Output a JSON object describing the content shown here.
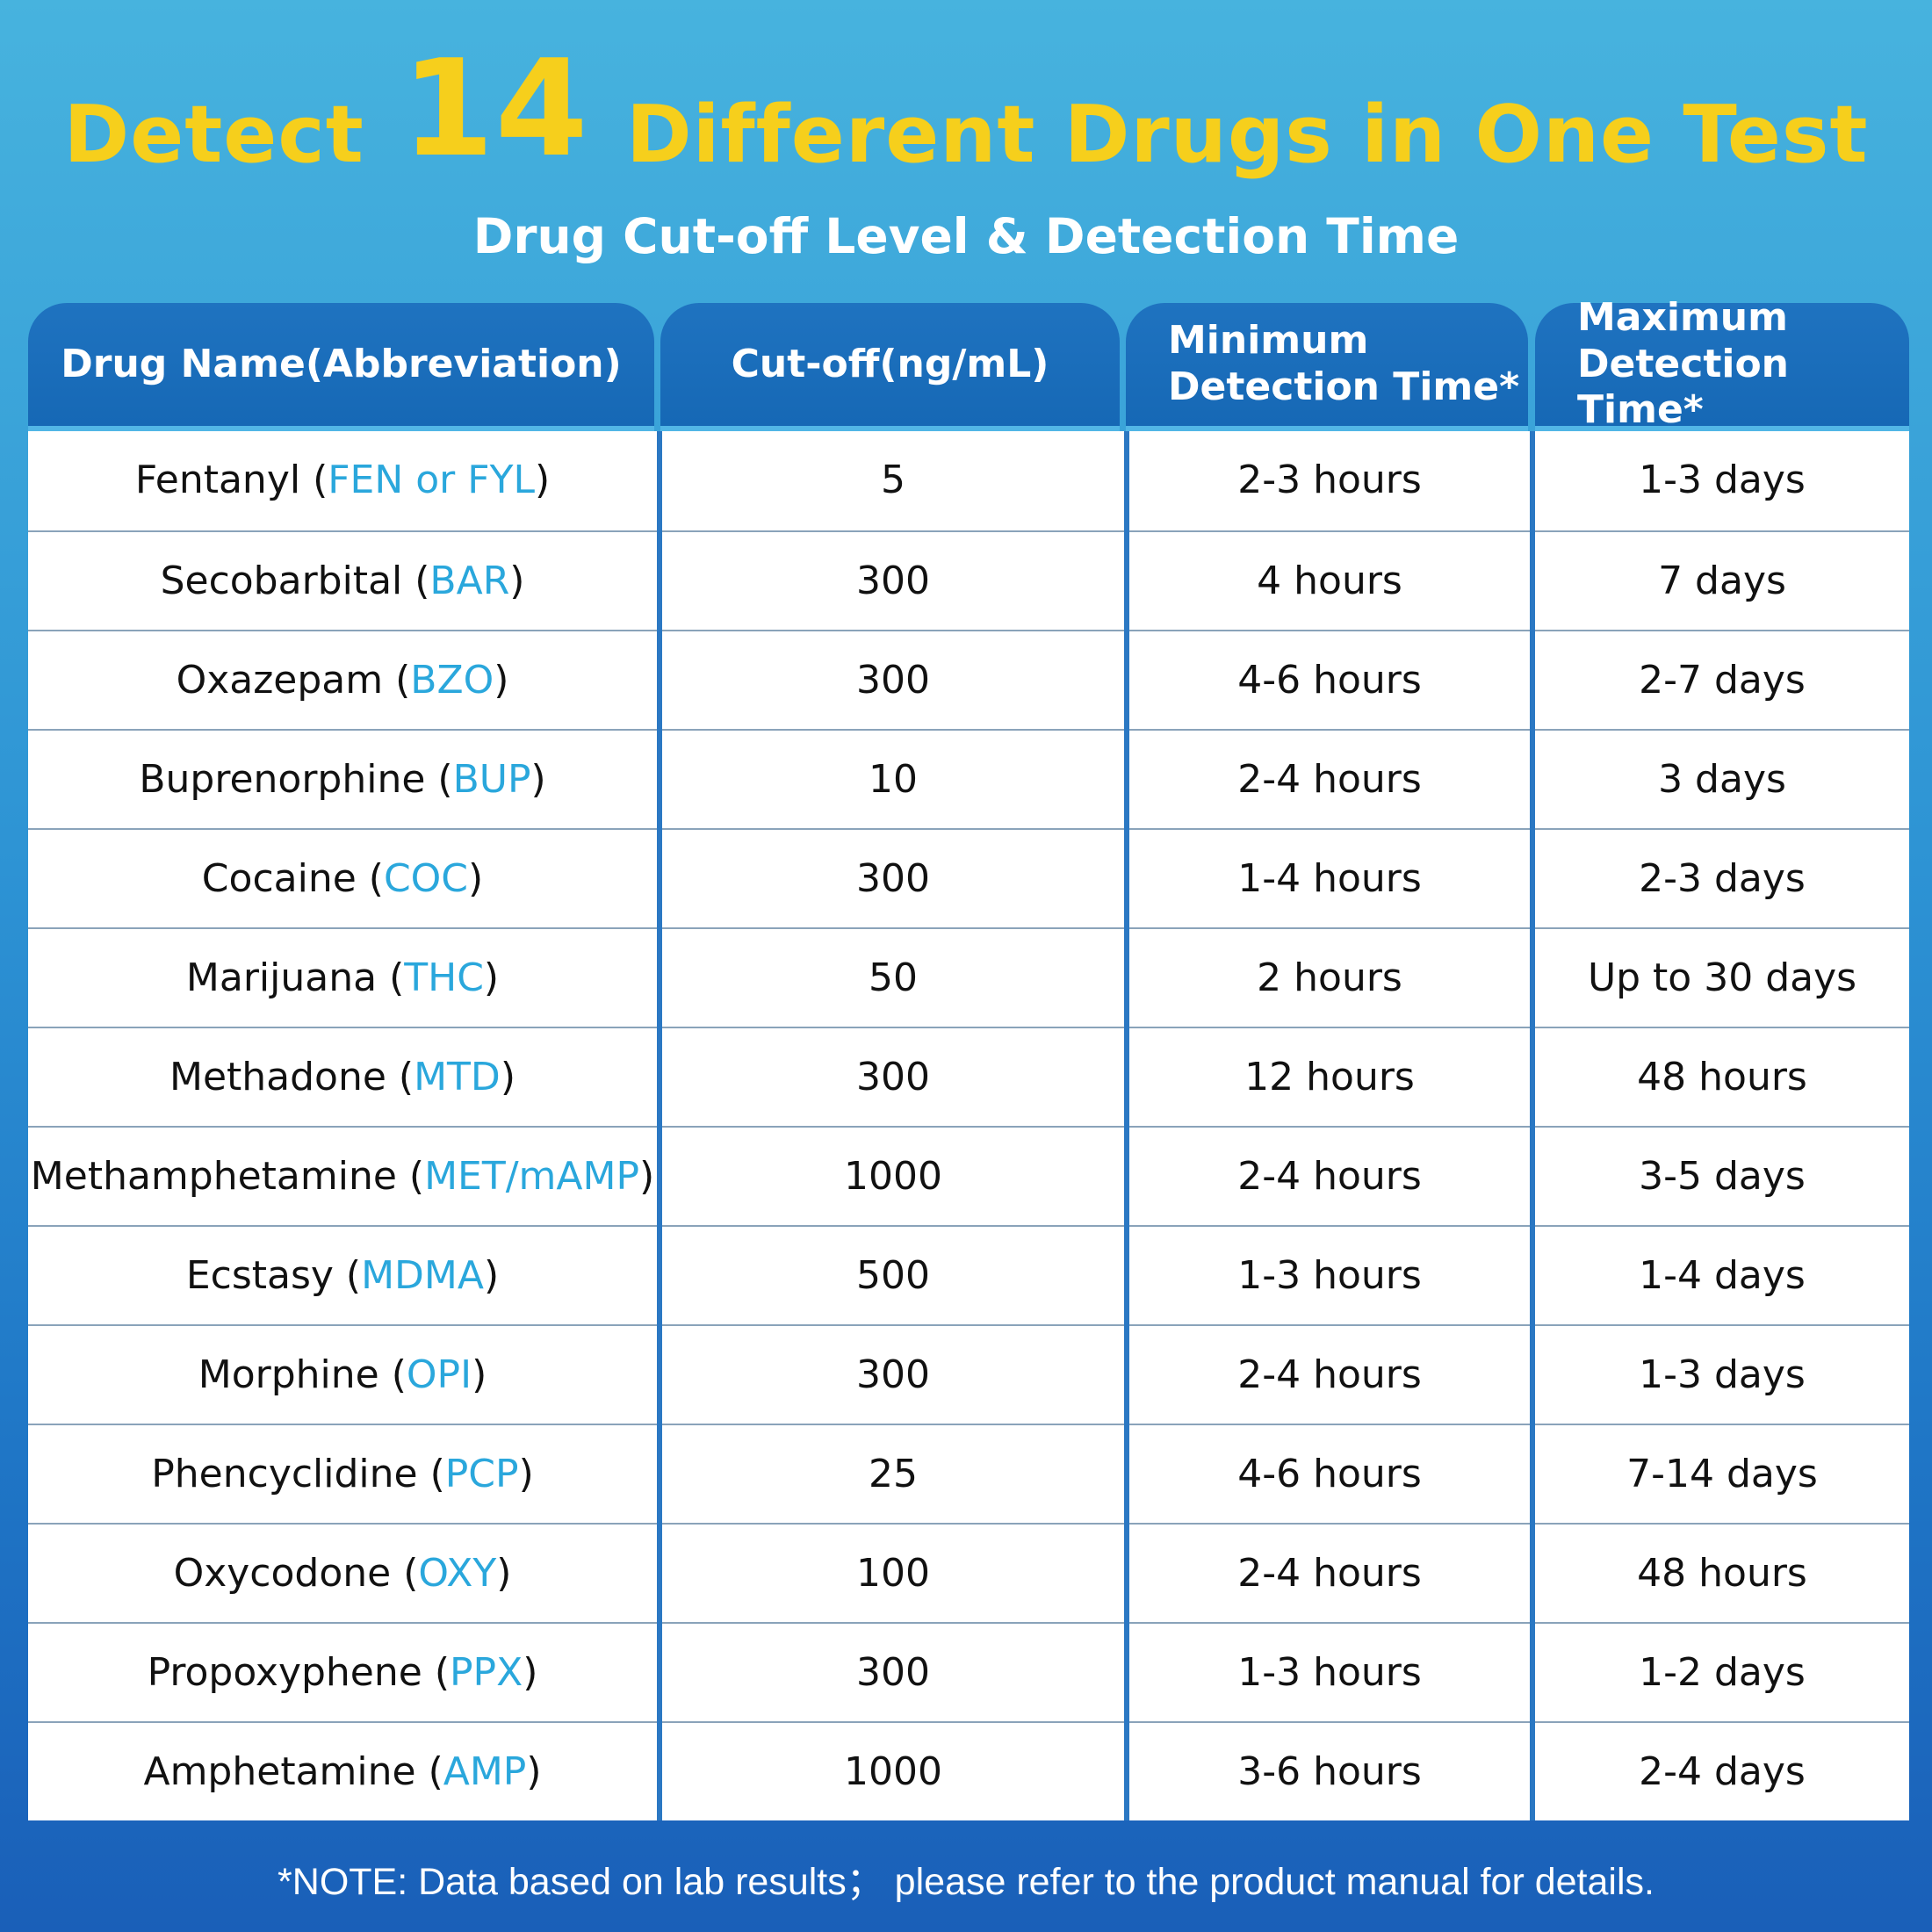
{
  "header": {
    "title_prefix": "Detect",
    "title_number": "14",
    "title_suffix": "Different Drugs in One Test",
    "subtitle": "Drug Cut-off Level & Detection Time"
  },
  "table": {
    "columns": [
      "Drug Name(Abbreviation)",
      "Cut-off(ng/mL)",
      "Minimum\nDetection Time*",
      "Maximum\nDetection Time*"
    ],
    "rows": [
      {
        "name": "Fentanyl",
        "abbr": "FEN or FYL",
        "cutoff": "5",
        "min": "2-3 hours",
        "max": "1-3 days"
      },
      {
        "name": "Secobarbital",
        "abbr": "BAR",
        "cutoff": "300",
        "min": "4 hours",
        "max": "7 days"
      },
      {
        "name": "Oxazepam",
        "abbr": "BZO",
        "cutoff": "300",
        "min": "4-6 hours",
        "max": "2-7 days"
      },
      {
        "name": "Buprenorphine",
        "abbr": "BUP",
        "cutoff": "10",
        "min": "2-4 hours",
        "max": "3 days"
      },
      {
        "name": "Cocaine",
        "abbr": "COC",
        "cutoff": "300",
        "min": "1-4 hours",
        "max": "2-3 days"
      },
      {
        "name": "Marijuana",
        "abbr": "THC",
        "cutoff": "50",
        "min": "2 hours",
        "max": "Up to 30 days"
      },
      {
        "name": "Methadone",
        "abbr": "MTD",
        "cutoff": "300",
        "min": "12 hours",
        "max": "48 hours"
      },
      {
        "name": "Methamphetamine",
        "abbr": "MET/mAMP",
        "cutoff": "1000",
        "min": "2-4 hours",
        "max": "3-5 days"
      },
      {
        "name": "Ecstasy",
        "abbr": "MDMA",
        "cutoff": "500",
        "min": "1-3 hours",
        "max": "1-4 days"
      },
      {
        "name": "Morphine",
        "abbr": "OPI",
        "cutoff": "300",
        "min": "2-4 hours",
        "max": "1-3 days"
      },
      {
        "name": "Phencyclidine",
        "abbr": "PCP",
        "cutoff": "25",
        "min": "4-6 hours",
        "max": "7-14 days"
      },
      {
        "name": "Oxycodone",
        "abbr": "OXY",
        "cutoff": "100",
        "min": "2-4 hours",
        "max": "48 hours"
      },
      {
        "name": "Propoxyphene",
        "abbr": "PPX",
        "cutoff": "300",
        "min": "1-3 hours",
        "max": "1-2 days"
      },
      {
        "name": "Amphetamine",
        "abbr": "AMP",
        "cutoff": "1000",
        "min": "3-6 hours",
        "max": "2-4 days"
      }
    ]
  },
  "note": "*NOTE: Data based on lab results； please refer to the product manual for details.",
  "colors": {
    "title_yellow": "#f6cf1c",
    "abbr_blue": "#2aa7dc",
    "header_blue": "#1668b5"
  }
}
